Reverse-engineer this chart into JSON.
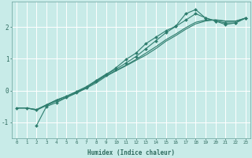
{
  "xlabel": "Humidex (Indice chaleur)",
  "ylabel": "",
  "background_color": "#c8ebe8",
  "grid_color": "#ffffff",
  "line_color": "#2e7d6e",
  "xlim": [
    -0.5,
    23.5
  ],
  "ylim": [
    -1.5,
    2.8
  ],
  "yticks": [
    -1,
    0,
    1,
    2
  ],
  "xticks": [
    0,
    1,
    2,
    3,
    4,
    5,
    6,
    7,
    8,
    9,
    10,
    11,
    12,
    13,
    14,
    15,
    16,
    17,
    18,
    19,
    20,
    21,
    22,
    23
  ],
  "series": [
    {
      "x": [
        0,
        1,
        2,
        3,
        4,
        5,
        6,
        7,
        8,
        9,
        10,
        11,
        12,
        13,
        14,
        15,
        16,
        17,
        18,
        19,
        20,
        21,
        22,
        23
      ],
      "y": [
        -0.55,
        -0.55,
        -0.6,
        -0.45,
        -0.3,
        -0.18,
        -0.05,
        0.1,
        0.28,
        0.48,
        0.63,
        0.8,
        0.98,
        1.18,
        1.38,
        1.6,
        1.78,
        1.98,
        2.15,
        2.22,
        2.22,
        2.18,
        2.18,
        2.28
      ],
      "markers": false
    },
    {
      "x": [
        0,
        1,
        2,
        3,
        4,
        5,
        6,
        7,
        8,
        9,
        10,
        11,
        12,
        13,
        14,
        15,
        16,
        17,
        18,
        19,
        20,
        21,
        22,
        23
      ],
      "y": [
        -0.55,
        -0.55,
        -0.62,
        -0.47,
        -0.33,
        -0.22,
        -0.08,
        0.07,
        0.24,
        0.45,
        0.62,
        0.78,
        0.95,
        1.12,
        1.32,
        1.55,
        1.73,
        1.93,
        2.1,
        2.19,
        2.23,
        2.19,
        2.19,
        2.28
      ],
      "markers": false
    },
    {
      "x": [
        2,
        3,
        4,
        5,
        6,
        7,
        8,
        9,
        10,
        11,
        12,
        13,
        14,
        15,
        16,
        17,
        18,
        19,
        20,
        21,
        22,
        23
      ],
      "y": [
        -1.1,
        -0.5,
        -0.38,
        -0.22,
        -0.07,
        0.08,
        0.3,
        0.5,
        0.72,
        0.98,
        1.18,
        1.48,
        1.68,
        1.88,
        2.03,
        2.42,
        2.55,
        2.28,
        2.19,
        2.13,
        2.13,
        2.28
      ],
      "markers": true
    },
    {
      "x": [
        0,
        1,
        2,
        3,
        4,
        5,
        6,
        7,
        8,
        9,
        10,
        11,
        12,
        13,
        14,
        15,
        16,
        17,
        18,
        19,
        20,
        21,
        22,
        23
      ],
      "y": [
        -0.55,
        -0.55,
        -0.6,
        -0.45,
        -0.3,
        -0.18,
        -0.03,
        0.12,
        0.32,
        0.52,
        0.67,
        0.87,
        1.07,
        1.32,
        1.57,
        1.82,
        2.02,
        2.22,
        2.42,
        2.29,
        2.19,
        2.08,
        2.13,
        2.28
      ],
      "markers": true
    }
  ]
}
